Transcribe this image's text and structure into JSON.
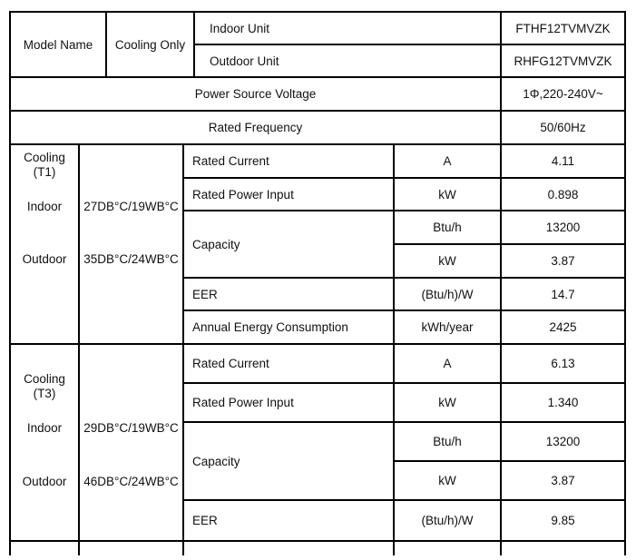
{
  "header": {
    "model_name": "Model Name",
    "cooling_only": "Cooling Only",
    "indoor_unit_label": "Indoor Unit",
    "indoor_unit_model": "FTHF12TVMVZK",
    "outdoor_unit_label": "Outdoor Unit",
    "outdoor_unit_model": "RHFG12TVMVZK"
  },
  "power": {
    "label": "Power Source Voltage",
    "value": "1Φ,220-240V~"
  },
  "frequency": {
    "label": "Rated Frequency",
    "value": "50/60Hz"
  },
  "t1": {
    "title": "Cooling",
    "sub": "(T1)",
    "indoor_label": "Indoor",
    "outdoor_label": "Outdoor",
    "indoor_cond": "27DB°C/19WB°C",
    "outdoor_cond": "35DB°C/24WB°C",
    "rows": [
      {
        "param": "Rated Current",
        "unit": "A",
        "value": "4.11"
      },
      {
        "param": "Rated Power Input",
        "unit": "kW",
        "value": "0.898"
      },
      {
        "param": "Capacity",
        "unit": "Btu/h",
        "value": "13200"
      },
      {
        "param": "",
        "unit": "kW",
        "value": "3.87"
      },
      {
        "param": "EER",
        "unit": "(Btu/h)/W",
        "value": "14.7"
      },
      {
        "param": "Annual Energy Consumption",
        "unit": "kWh/year",
        "value": "2425"
      }
    ]
  },
  "t3": {
    "title": "Cooling",
    "sub": "(T3)",
    "indoor_label": "Indoor",
    "outdoor_label": "Outdoor",
    "indoor_cond": "29DB°C/19WB°C",
    "outdoor_cond": "46DB°C/24WB°C",
    "rows": [
      {
        "param": "Rated Current",
        "unit": "A",
        "value": "6.13"
      },
      {
        "param": "Rated Power Input",
        "unit": "kW",
        "value": "1.340"
      },
      {
        "param": "Capacity",
        "unit": "Btu/h",
        "value": "13200"
      },
      {
        "param": "",
        "unit": "kW",
        "value": "3.87"
      },
      {
        "param": "EER",
        "unit": "(Btu/h)/W",
        "value": "9.85"
      }
    ]
  }
}
